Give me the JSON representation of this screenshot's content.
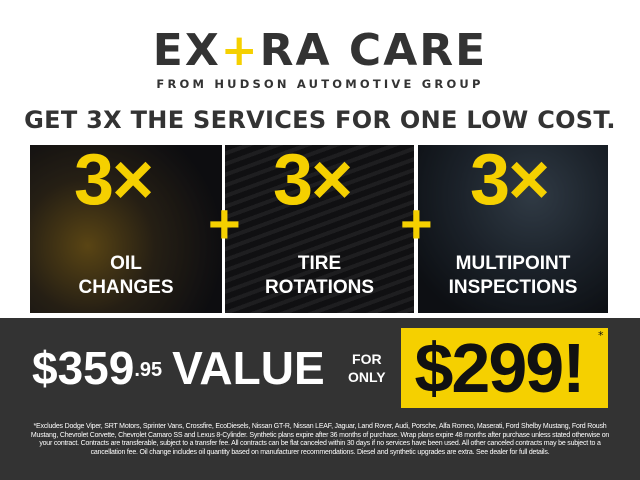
{
  "logo": {
    "text_before": "EX",
    "text_plus": "+",
    "text_after": "RA CARE",
    "subtitle": "FROM HUDSON AUTOMOTIVE GROUP"
  },
  "headline": "GET 3X THE SERVICES FOR ONE LOW COST.",
  "services": [
    {
      "count": "3×",
      "label_line1": "OIL",
      "label_line2": "CHANGES",
      "image": "oil-pouring-photo"
    },
    {
      "count": "3×",
      "label_line1": "TIRE",
      "label_line2": "ROTATIONS",
      "image": "tire-photo"
    },
    {
      "count": "3×",
      "label_line1": "MULTIPOINT",
      "label_line2": "INSPECTIONS",
      "image": "diagnostic-screen-photo"
    }
  ],
  "plus": "+",
  "offer": {
    "value_main": "$359",
    "value_cents": ".95",
    "value_word": "VALUE",
    "for": "FOR",
    "only": "ONLY",
    "price": "$299!",
    "asterisk": "*"
  },
  "fine_print": "*Excludes Dodge Viper, SRT Motors, Sprinter Vans, Crossfire, EcoDiesels, Nissan GT-R, Nissan LEAF, Jaguar, Land Rover, Audi, Porsche, Alfa Romeo, Maserati, Ford Shelby Mustang, Ford Roush Mustang, Chevrolet Corvette, Chevrolet Camaro SS and Lexus 8-Cylinder. Synthetic plans expire after 36 months of purchase. Wrap plans expire 48 months after purchase unless stated otherwise on your contract. Contracts are transferable, subject to a transfer fee. All contracts can be flat canceled within 30 days if no services have been used. All other canceled contracts may be subject to a cancellation fee. Oil change includes oil quantity based on manufacturer recommendations. Diesel and synthetic upgrades are extra. See dealer for full details.",
  "colors": {
    "accent": "#f5d000",
    "dark": "#333333",
    "text": "#ffffff"
  }
}
